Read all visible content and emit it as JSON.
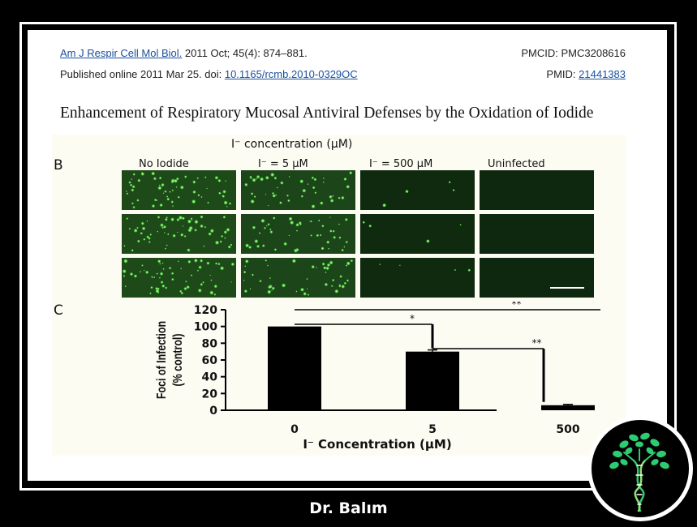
{
  "citation": {
    "journal": "Am J Respir Cell Mol Biol.",
    "issue": "2011 Oct; 45(4): 874–881.",
    "published_prefix": "Published online 2011 Mar 25. doi: ",
    "doi": "10.1165/rcmb.2010-0329OC",
    "pmcid": "PMCID: PMC3208616",
    "pmid_label": "PMID: ",
    "pmid": "21441383"
  },
  "article_title": "Enhancement of Respiratory Mucosal Antiviral Defenses by the Oxidation of Iodide",
  "panel_b": {
    "letter": "B",
    "header": "I⁻ concentration (μM)",
    "columns": [
      "No Iodide",
      "I⁻ = 5 μM",
      "I⁻ = 500 μM",
      "Uninfected"
    ]
  },
  "chart_data": {
    "type": "bar",
    "panel_letter": "C",
    "categories": [
      "0",
      "5",
      "500"
    ],
    "values": [
      100,
      70,
      6
    ],
    "errors": [
      0,
      2,
      1
    ],
    "xlabel": "I⁻ Concentration (μM)",
    "ylabel_line1": "Foci of Infection",
    "ylabel_line2": "(% control)",
    "ylim": [
      0,
      120
    ],
    "yticks": [
      "0",
      "20",
      "40",
      "60",
      "80",
      "100",
      "120"
    ],
    "significance": [
      {
        "from": "0",
        "to": "5",
        "label": "*"
      },
      {
        "from": "0",
        "to": "500",
        "label": "**"
      },
      {
        "from": "5",
        "to": "500",
        "label": "**"
      }
    ],
    "bar_color": "#000000"
  },
  "footer": {
    "credit": "Dr. Balım"
  },
  "colors": {
    "link": "#1a4f9c",
    "fluorescence": "#3fd04a",
    "logo_leaf": "#2ecc71"
  }
}
